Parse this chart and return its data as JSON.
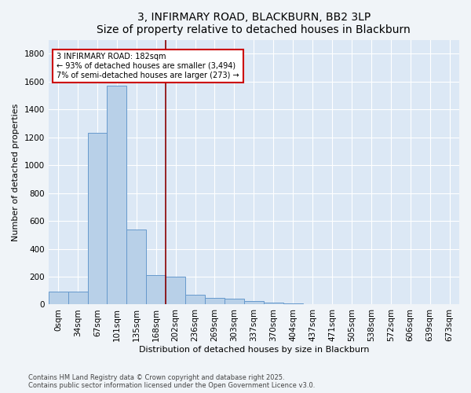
{
  "title": "3, INFIRMARY ROAD, BLACKBURN, BB2 3LP",
  "subtitle": "Size of property relative to detached houses in Blackburn",
  "xlabel": "Distribution of detached houses by size in Blackburn",
  "ylabel": "Number of detached properties",
  "categories": [
    "0sqm",
    "34sqm",
    "67sqm",
    "101sqm",
    "135sqm",
    "168sqm",
    "202sqm",
    "236sqm",
    "269sqm",
    "303sqm",
    "337sqm",
    "370sqm",
    "404sqm",
    "437sqm",
    "471sqm",
    "505sqm",
    "538sqm",
    "572sqm",
    "606sqm",
    "639sqm",
    "673sqm"
  ],
  "values": [
    90,
    90,
    1230,
    1570,
    540,
    210,
    200,
    70,
    50,
    40,
    25,
    15,
    10,
    5,
    5,
    3,
    3,
    2,
    2,
    1,
    1
  ],
  "bar_color": "#b8d0e8",
  "bar_edge_color": "#6699cc",
  "vline_color": "#8b0000",
  "annotation_text": "3 INFIRMARY ROAD: 182sqm\n← 93% of detached houses are smaller (3,494)\n7% of semi-detached houses are larger (273) →",
  "annotation_box_color": "#ffffff",
  "annotation_box_edge": "#cc0000",
  "ylim": [
    0,
    1900
  ],
  "yticks": [
    0,
    200,
    400,
    600,
    800,
    1000,
    1200,
    1400,
    1600,
    1800
  ],
  "footer1": "Contains HM Land Registry data © Crown copyright and database right 2025.",
  "footer2": "Contains public sector information licensed under the Open Government Licence v3.0.",
  "bg_color": "#dce8f5",
  "fig_color": "#f0f4f8",
  "title_fontsize": 10,
  "axis_fontsize": 8,
  "tick_fontsize": 7.5,
  "footer_fontsize": 6
}
